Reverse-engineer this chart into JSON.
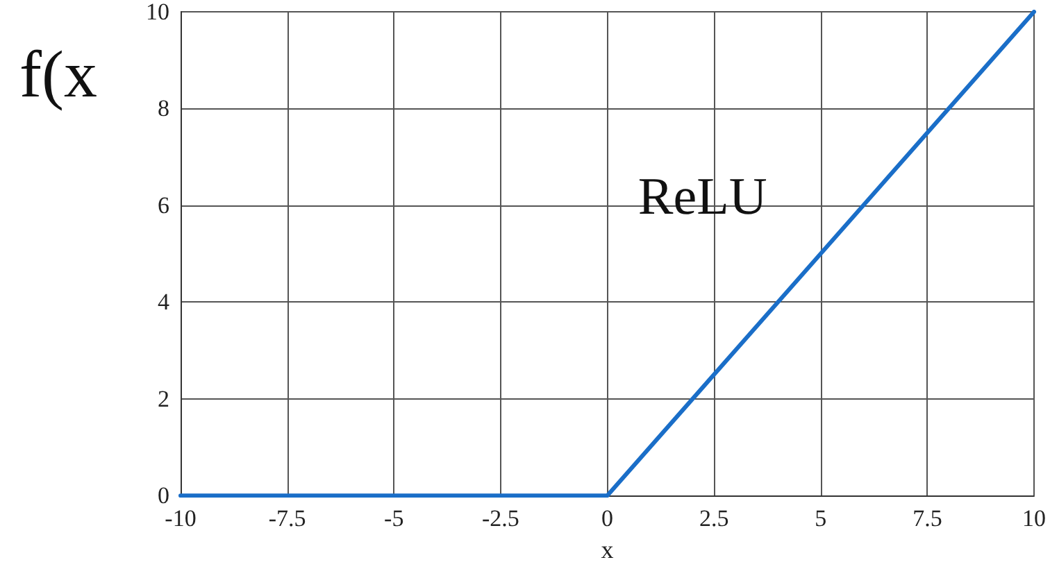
{
  "chart_data": {
    "type": "line",
    "xlabel": "x",
    "ylabel": "f(x",
    "x": [
      -10,
      0,
      10
    ],
    "series": [
      {
        "name": "ReLU",
        "color": "#1a6ec8",
        "values": [
          0,
          0,
          10
        ]
      }
    ],
    "xlim": [
      -10,
      10
    ],
    "xticks": [
      -10,
      -7.5,
      -5,
      -2.5,
      0,
      2.5,
      5,
      7.5,
      10
    ],
    "ylim": [
      0,
      10
    ],
    "yticks": [
      0,
      2,
      4,
      6,
      8,
      10
    ],
    "grid": true,
    "marker": "none",
    "line_style": "solid"
  }
}
